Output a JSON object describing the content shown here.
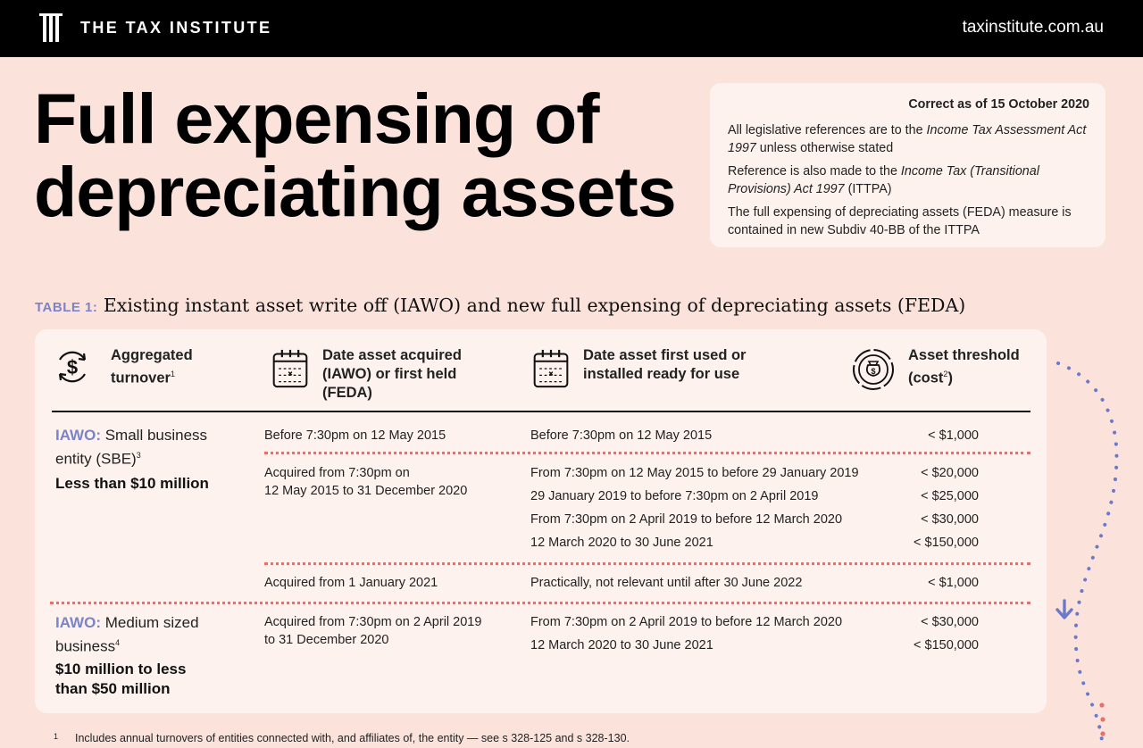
{
  "header": {
    "brand": "THE TAX INSTITUTE",
    "url": "taxinstitute.com.au",
    "logo_icon": "tax-institute-logo"
  },
  "title": {
    "line1": "Full expensing of",
    "line2": "depreciating assets"
  },
  "infobox": {
    "asof": "Correct as of 15 October 2020",
    "p1_pre": "All legislative references are to the ",
    "p1_em": "Income Tax Assessment Act 1997",
    "p1_post": " unless otherwise stated",
    "p2_pre": "Reference is also made to the ",
    "p2_em": "Income Tax (Transitional Provisions) Act 1997",
    "p2_post": " (ITTPA)",
    "p3": "The full expensing of depreciating assets (FEDA) measure is contained in new Subdiv 40-BB of the ITTPA"
  },
  "table": {
    "caption_num": "TABLE 1:",
    "caption_text": "Existing instant asset write off (IAWO) and new full expensing of depreciating assets (FEDA)",
    "headers": {
      "turnover_l1": "Aggregated",
      "turnover_l2": "turnover",
      "turnover_sup": "1",
      "acquired_l1": "Date asset acquired",
      "acquired_l2": "(IAWO) or first held",
      "acquired_l3": "(FEDA)",
      "used_l1": "Date asset first used or",
      "used_l2": "installed ready for use",
      "threshold_l1": "Asset threshold",
      "threshold_l2a": "(cost",
      "threshold_sup": "2",
      "threshold_l2b": ")"
    },
    "icons": {
      "turnover": "dollar-cycle-icon",
      "acquired": "calendar-icon",
      "used": "calendar-icon",
      "threshold": "money-bag-icon"
    },
    "sbe": {
      "tag": "IAWO:",
      "name_a": " Small business",
      "name_b": "entity (SBE)",
      "name_sup": "3",
      "range": "Less than $10 million",
      "r1_acq": "Before 7:30pm on 12 May 2015",
      "r1_used": "Before 7:30pm on 12 May 2015",
      "r1_amt": "< $1,000",
      "r2_acq_l1": "Acquired from 7:30pm on",
      "r2_acq_l2": "12 May 2015 to 31 December 2020",
      "r2_used": [
        "From 7:30pm on 12 May 2015 to before 29 January 2019",
        "29 January 2019 to before 7:30pm on 2 April 2019",
        "From 7:30pm on 2 April 2019 to before 12 March 2020",
        "12 March 2020 to 30 June 2021"
      ],
      "r2_amt": [
        "< $20,000",
        "< $25,000",
        "< $30,000",
        "< $150,000"
      ],
      "r3_acq": "Acquired from 1 January 2021",
      "r3_used": "Practically, not relevant until after 30 June 2022",
      "r3_amt": "< $1,000"
    },
    "medium": {
      "tag": "IAWO:",
      "name_a": " Medium sized",
      "name_b": "business",
      "name_sup": "4",
      "range_l1": "$10 million to less",
      "range_l2": "than $50 million",
      "acq_l1": "Acquired from 7:30pm on 2 April 2019",
      "acq_l2": "to 31 December 2020",
      "used": [
        "From 7:30pm on 2 April 2019 to before 12 March 2020",
        "12 March 2020 to 30 June 2021"
      ],
      "amt": [
        "< $30,000",
        "< $150,000"
      ]
    }
  },
  "footnote": {
    "num": "1",
    "text": "Includes annual turnovers of entities connected with, and affiliates of, the entity — see s 328-125 and s 328-130."
  },
  "colors": {
    "background": "#fbe3dc",
    "card": "#fdf2ee",
    "accent_blue": "#7b84c6",
    "dotted_red": "#e8706a"
  }
}
